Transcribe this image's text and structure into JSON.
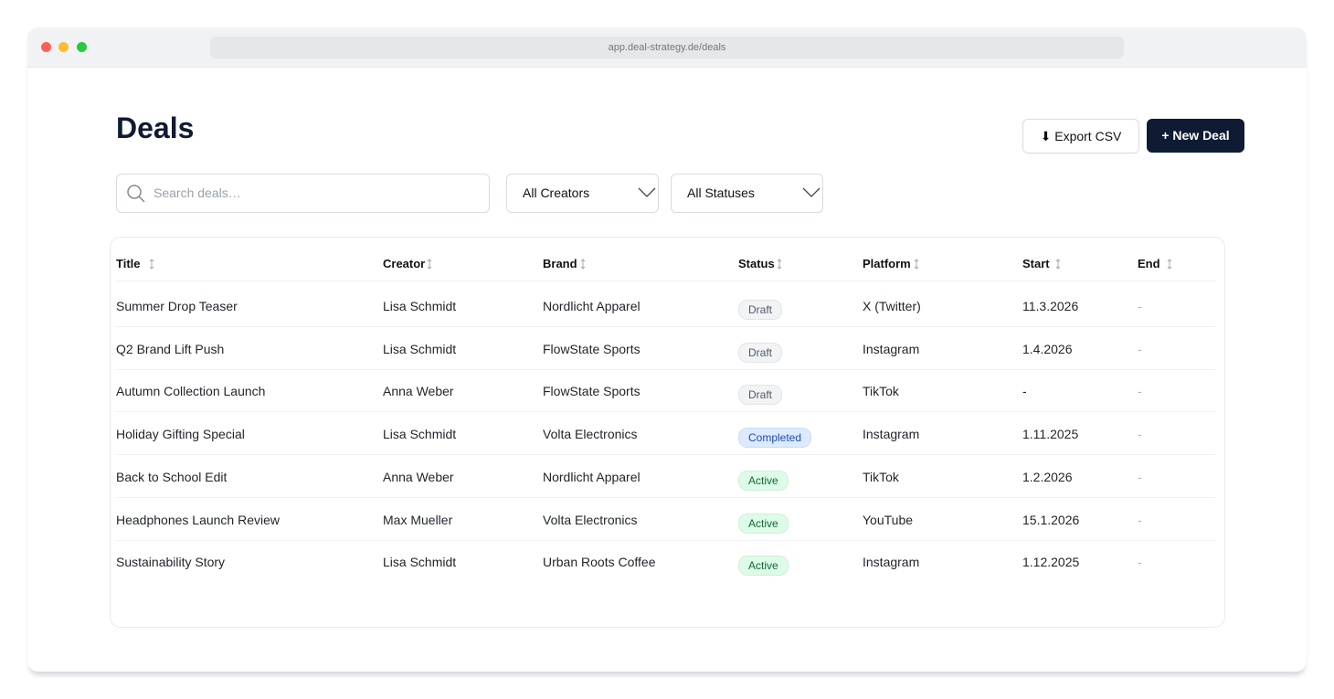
{
  "browser": {
    "url": "app.deal-strategy.de/deals"
  },
  "header": {
    "title": "Deals",
    "actions": [
      "⬇ Export CSV",
      "+ New Deal"
    ]
  },
  "filters": {
    "search_placeholder": "Search deals…",
    "selects": [
      "All Creators",
      "All Statuses"
    ]
  },
  "table": {
    "columns": [
      "Title",
      "Creator",
      "Brand",
      "Status",
      "Platform",
      "Start",
      "End"
    ],
    "rows": [
      {
        "cells": [
          "Summer Drop Teaser",
          "Lisa Schmidt",
          "Nordlicht Apparel",
          "Draft",
          "X (Twitter)",
          "11.3.2026",
          "-"
        ],
        "status_color": "#f1f3f5",
        "status_text_color": "#555b66"
      },
      {
        "cells": [
          "Q2 Brand Lift Push",
          "Lisa Schmidt",
          "FlowState Sports",
          "Draft",
          "Instagram",
          "1.4.2026",
          "-"
        ],
        "status_color": "#f1f3f5",
        "status_text_color": "#555b66"
      },
      {
        "cells": [
          "Autumn Collection Launch",
          "Anna Weber",
          "FlowState Sports",
          "Draft",
          "TikTok",
          "-",
          "-"
        ],
        "status_color": "#f1f3f5",
        "status_text_color": "#555b66"
      },
      {
        "cells": [
          "Holiday Gifting Special",
          "Lisa Schmidt",
          "Volta Electronics",
          "Completed",
          "Instagram",
          "1.11.2025",
          "-"
        ],
        "status_color": "#dbeafe",
        "status_text_color": "#1e4fa8"
      },
      {
        "cells": [
          "Back to School Edit",
          "Anna Weber",
          "Nordlicht Apparel",
          "Active",
          "TikTok",
          "1.2.2026",
          "-"
        ],
        "status_color": "#dcfce7",
        "status_text_color": "#166534"
      },
      {
        "cells": [
          "Headphones Launch Review",
          "Max Mueller",
          "Volta Electronics",
          "Active",
          "YouTube",
          "15.1.2026",
          "-"
        ],
        "status_color": "#dcfce7",
        "status_text_color": "#166534"
      },
      {
        "cells": [
          "Sustainability Story",
          "Lisa Schmidt",
          "Urban Roots Coffee",
          "Active",
          "Instagram",
          "1.12.2025",
          "-"
        ],
        "status_color": "#dcfce7",
        "status_text_color": "#166534"
      }
    ]
  }
}
